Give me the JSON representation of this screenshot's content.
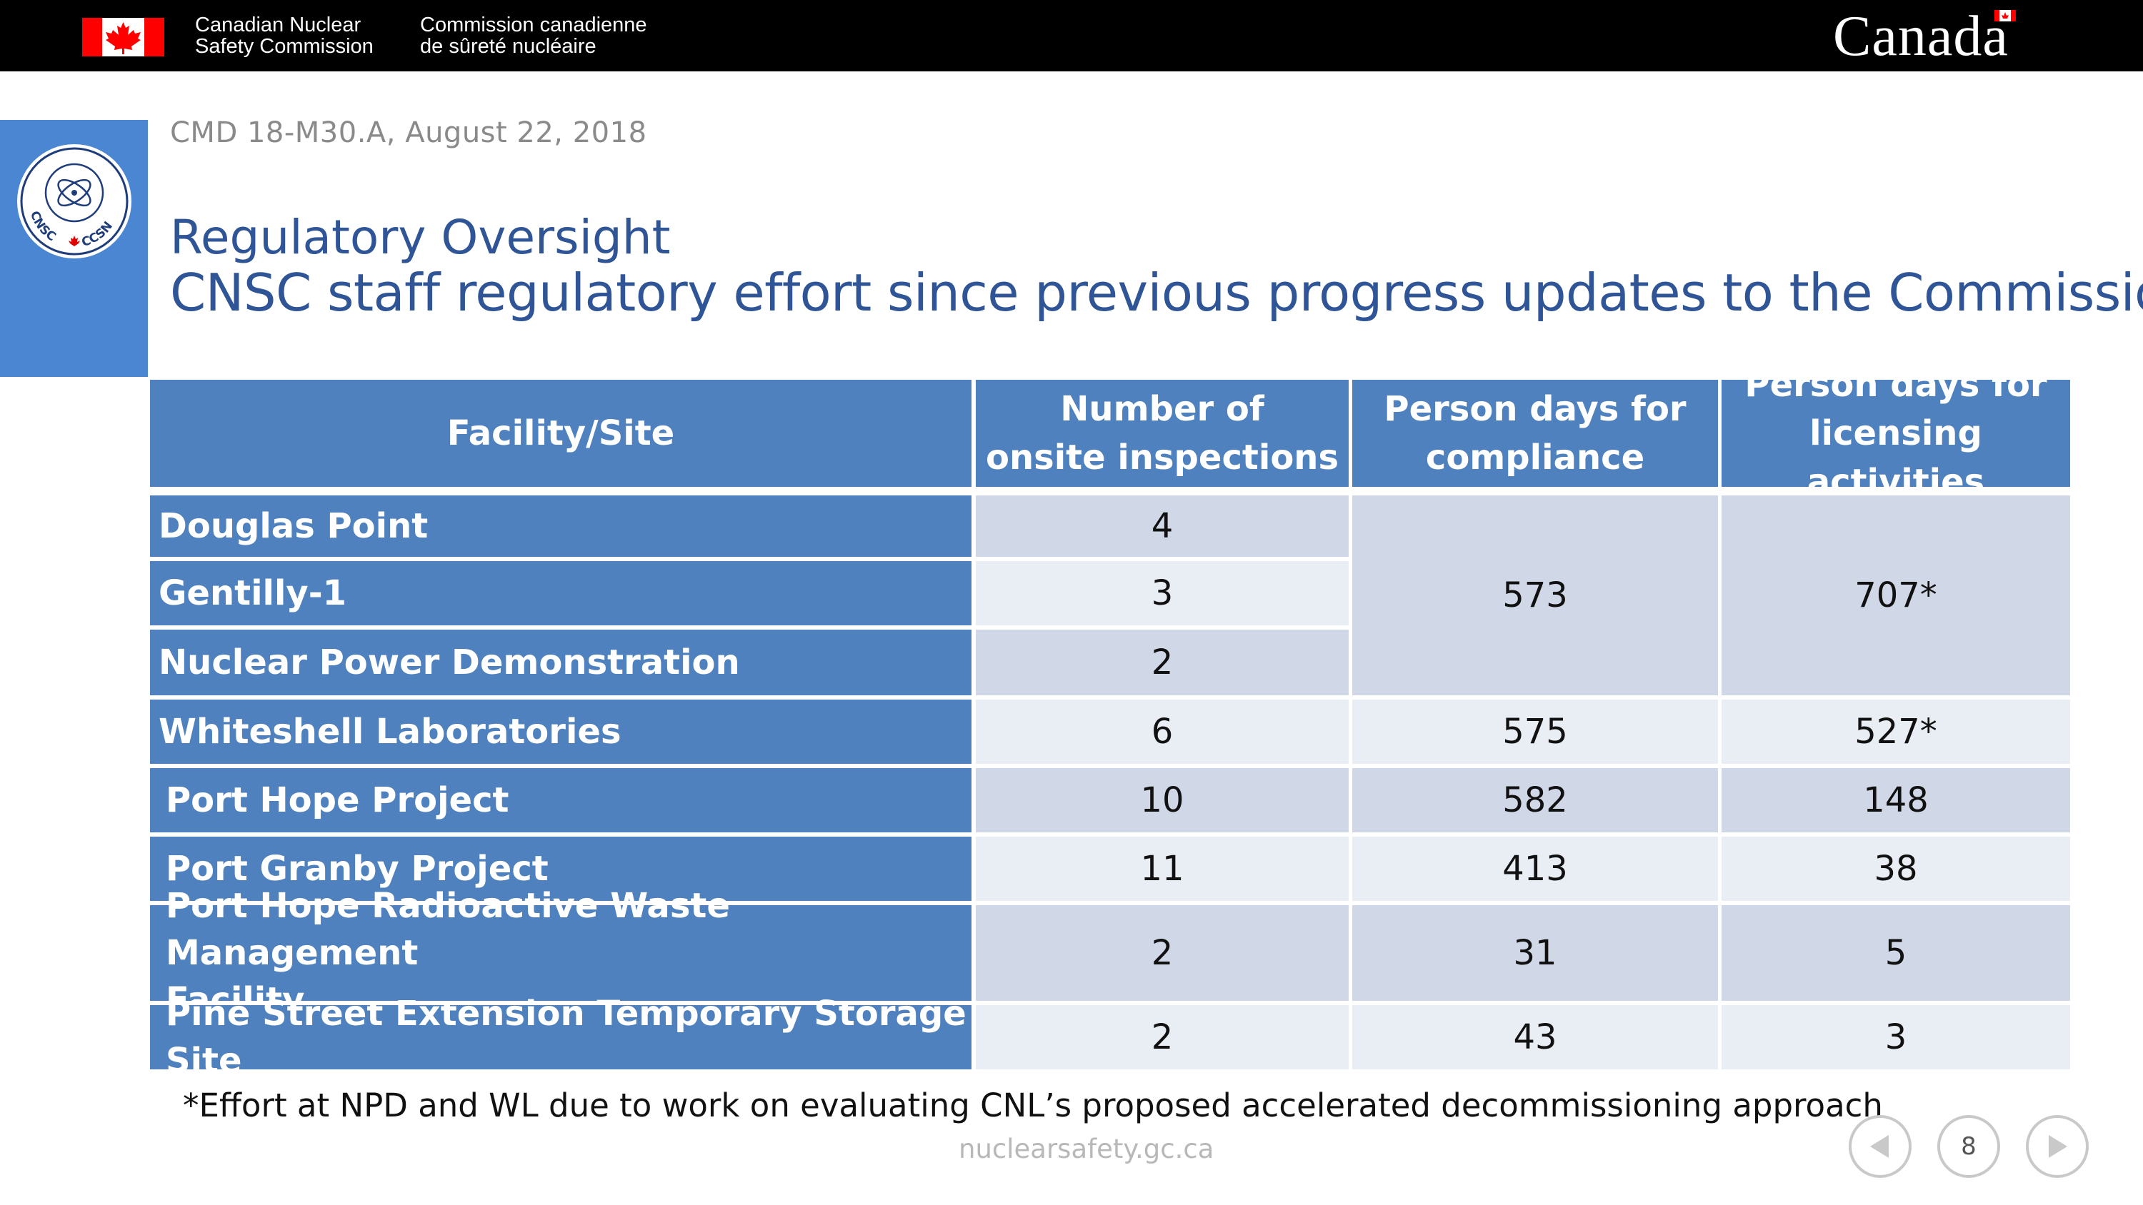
{
  "header": {
    "org_name_en_line1": "Canadian Nuclear",
    "org_name_en_line2": "Safety Commission",
    "org_name_fr_line1": "Commission canadienne",
    "org_name_fr_line2": "de sûreté nucléaire",
    "wordmark": "Canada",
    "flag_icon": "canada-flag-icon"
  },
  "logo": {
    "icon": "cnsc-ccsn-logo",
    "left_text": "CNSC",
    "right_text": "CCSN"
  },
  "slide": {
    "reference": "CMD 18-M30.A, August 22, 2018",
    "title_line1": "Regulatory Oversight",
    "title_line2": "CNSC staff regulatory effort since previous progress updates to the Commission"
  },
  "table": {
    "headers": {
      "site_col": "Facility/Site",
      "inspections_line1": "Number of",
      "inspections_line2": "onsite inspections",
      "compliance_line1": "Person days for",
      "compliance_line2": "compliance",
      "licensing_line1": "Person days for",
      "licensing_line2": "licensing activities"
    },
    "rows": [
      {
        "site": "Douglas Point",
        "inspections": "4"
      },
      {
        "site": "Gentilly-1",
        "inspections": "3"
      },
      {
        "site": "Nuclear Power Demonstration",
        "inspections": "2"
      },
      {
        "site": "Whiteshell Laboratories",
        "inspections": "6",
        "compliance": "575",
        "licensing": "527*"
      },
      {
        "site": "Port Hope Project",
        "inspections": "10",
        "compliance": "582",
        "licensing": "148"
      },
      {
        "site": "Port Granby Project",
        "inspections": "11",
        "compliance": "413",
        "licensing": "38"
      },
      {
        "site_line1": "Port Hope Radioactive Waste Management",
        "site_line2": "Facility",
        "inspections": "2",
        "compliance": "31",
        "licensing": "5"
      },
      {
        "site": "Pine Street Extension Temporary Storage Site",
        "inspections": "2",
        "compliance": "43",
        "licensing": "3"
      }
    ],
    "merged_group": {
      "compliance": "573",
      "licensing": "707*"
    }
  },
  "footnote": "*Effort at NPD and WL due to work on evaluating CNL’s proposed accelerated decommissioning approach",
  "footer": {
    "website": "nuclearsafety.gc.ca",
    "page_number": "8"
  },
  "colors": {
    "header_bar": "#000000",
    "accent_blue": "#4a86d1",
    "title_blue": "#2f5597",
    "table_header": "#4e81bd",
    "row_dark": "#d0d8e8",
    "row_light": "#e9edf4",
    "flag_red": "#ff0000"
  }
}
